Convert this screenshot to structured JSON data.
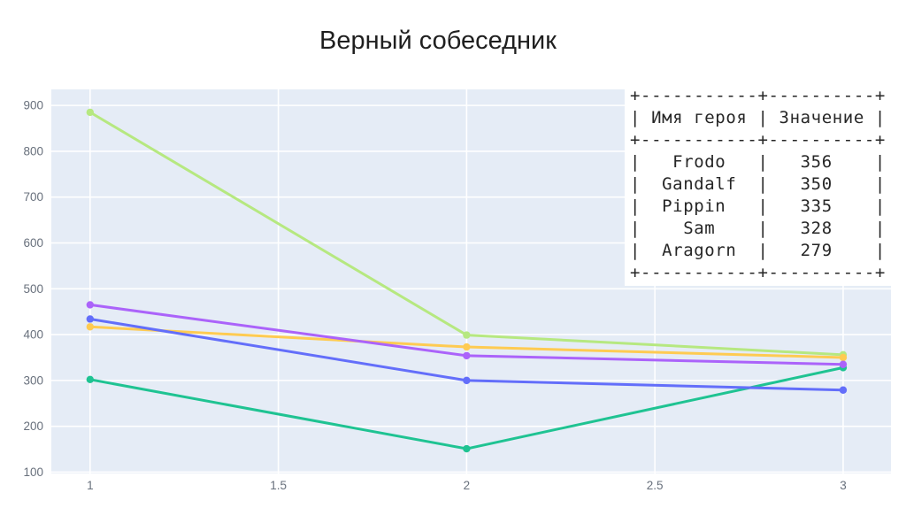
{
  "title": "Верный собеседник",
  "table": {
    "headers": [
      "Имя героя",
      "Значение"
    ],
    "rows": [
      [
        "Frodo",
        "356"
      ],
      [
        "Gandalf",
        "350"
      ],
      [
        "Pippin",
        "335"
      ],
      [
        "Sam",
        "328"
      ],
      [
        "Aragorn",
        "279"
      ]
    ]
  },
  "chart_data": {
    "type": "line",
    "title": "Верный собеседник",
    "x": [
      1,
      2,
      3
    ],
    "series": [
      {
        "name": "Frodo",
        "color": "#b6e880",
        "values": [
          885,
          399,
          356
        ]
      },
      {
        "name": "Gandalf",
        "color": "#fecb52",
        "values": [
          417,
          373,
          350
        ]
      },
      {
        "name": "Sam",
        "color": "#1fc392",
        "values": [
          302,
          151,
          328
        ]
      },
      {
        "name": "Pippin",
        "color": "#ab63fa",
        "values": [
          465,
          354,
          335
        ]
      },
      {
        "name": "Aragorn",
        "color": "#636efa",
        "values": [
          434,
          300,
          279
        ]
      }
    ],
    "xlabel": "",
    "ylabel": "",
    "x_ticks": [
      1,
      1.5,
      2,
      2.5,
      3
    ],
    "y_ticks": [
      100,
      200,
      300,
      400,
      500,
      600,
      700,
      800,
      900
    ],
    "x_range": [
      0.897,
      3.127
    ],
    "y_range": [
      97,
      935
    ],
    "grid": true,
    "legend_position": "none",
    "plot_bg": "#e5ecf6",
    "grid_color": "#ffffff",
    "tick_color": "#68707c"
  }
}
